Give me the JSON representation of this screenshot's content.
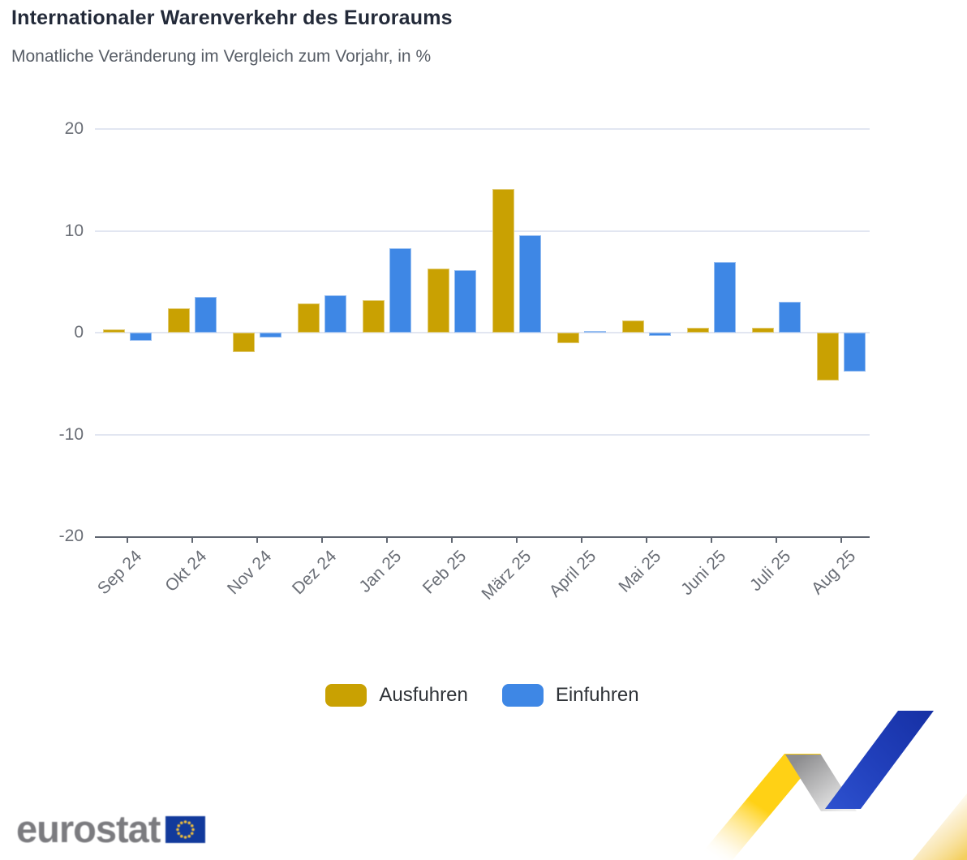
{
  "page": {
    "title": "Internationaler Warenverkehr des Euroraums",
    "subtitle": "Monatliche Veränderung im Vergleich zum Vorjahr, in %"
  },
  "chart_data": {
    "type": "bar",
    "title": "Internationaler Warenverkehr des Euroraums",
    "subtitle": "Monatliche Veränderung im Vergleich zum Vorjahr, in %",
    "categories": [
      "Sep 24",
      "Okt 24",
      "Nov 24",
      "Dez 24",
      "Jan 25",
      "Feb 25",
      "März 25",
      "April 25",
      "Mai 25",
      "Juni 25",
      "Juli 25",
      "Aug 25"
    ],
    "series": [
      {
        "name": "Ausfuhren",
        "color": "#C9A102",
        "values": [
          0.3,
          2.4,
          -1.9,
          2.9,
          3.2,
          6.3,
          14.1,
          -1.0,
          1.2,
          0.5,
          0.5,
          -4.7
        ]
      },
      {
        "name": "Einfuhren",
        "color": "#3E87E5",
        "values": [
          -0.8,
          3.5,
          -0.5,
          3.7,
          8.3,
          6.1,
          9.6,
          0.1,
          -0.3,
          6.9,
          3.0,
          -3.8
        ]
      }
    ],
    "xlabel": "",
    "ylabel": "",
    "yticks": [
      20,
      10,
      0,
      -10,
      -20
    ],
    "ylim": [
      -20,
      20
    ],
    "grid": true,
    "legend_position": "bottom"
  },
  "footer": {
    "logo_text": "eurostat"
  },
  "branding": {
    "eu_flag_blue": "#123A9C",
    "star_gold": "#EFBE3C",
    "logo_text_color": "#7B7B7F",
    "ribbon_yellow": "#FFD115",
    "ribbon_blue": "#1C3AB4",
    "ribbon_gray": "#97979A",
    "gridline_color": "#E2E6F1",
    "axis_color": "#5F6570"
  }
}
